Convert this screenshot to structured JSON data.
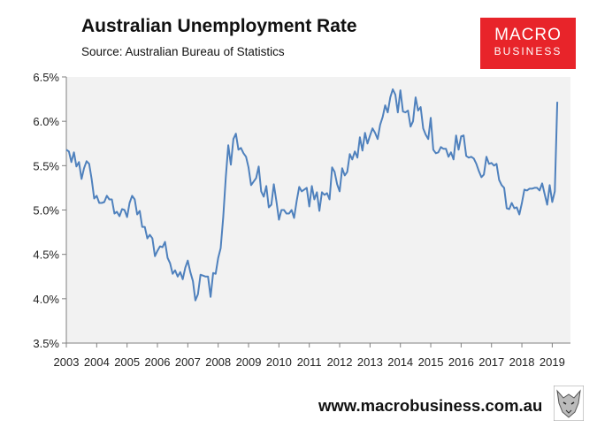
{
  "header": {
    "title": "Australian Unemployment Rate",
    "subtitle": "Source: Australian Bureau of Statistics"
  },
  "logo": {
    "line1": "MACRO",
    "line2": "BUSINESS",
    "color": "#e8242a"
  },
  "footer": {
    "url": "www.macrobusiness.com.au",
    "mascot_icon": "wolf-icon"
  },
  "chart_data": {
    "type": "line",
    "title": "Australian Unemployment Rate",
    "xlabel": "",
    "ylabel": "",
    "x_ticks": [
      "2003",
      "2004",
      "2005",
      "2006",
      "2007",
      "2008",
      "2009",
      "2010",
      "2011",
      "2012",
      "2013",
      "2014",
      "2015",
      "2016",
      "2017",
      "2018",
      "2019"
    ],
    "y_ticks": [
      "3.5%",
      "4.0%",
      "4.5%",
      "5.0%",
      "5.5%",
      "6.0%",
      "6.5%"
    ],
    "ylim": [
      3.5,
      6.5
    ],
    "xlim": [
      2003.0,
      2019.6
    ],
    "grid": false,
    "plot_background": "#f2f2f2",
    "line_color": "#4f81bd",
    "series": [
      {
        "x_start": 2003.0,
        "step_months": 1,
        "values": [
          5.68,
          5.66,
          5.54,
          5.65,
          5.49,
          5.54,
          5.35,
          5.47,
          5.55,
          5.52,
          5.35,
          5.13,
          5.16,
          5.08,
          5.08,
          5.09,
          5.16,
          5.12,
          5.12,
          4.96,
          4.98,
          4.93,
          5.01,
          5.0,
          4.92,
          5.08,
          5.16,
          5.12,
          4.95,
          4.99,
          4.81,
          4.81,
          4.68,
          4.72,
          4.68,
          4.48,
          4.54,
          4.59,
          4.58,
          4.64,
          4.46,
          4.4,
          4.28,
          4.32,
          4.25,
          4.3,
          4.22,
          4.35,
          4.43,
          4.3,
          4.2,
          3.98,
          4.05,
          4.27,
          4.26,
          4.25,
          4.25,
          4.02,
          4.29,
          4.28,
          4.46,
          4.57,
          4.92,
          5.37,
          5.73,
          5.51,
          5.8,
          5.86,
          5.68,
          5.7,
          5.64,
          5.6,
          5.48,
          5.28,
          5.32,
          5.36,
          5.49,
          5.21,
          5.15,
          5.27,
          5.03,
          5.06,
          5.29,
          5.1,
          4.89,
          5.0,
          5.0,
          4.96,
          4.96,
          5.0,
          4.91,
          5.1,
          5.26,
          5.21,
          5.23,
          5.25,
          5.04,
          5.27,
          5.12,
          5.2,
          4.99,
          5.2,
          5.17,
          5.19,
          5.12,
          5.48,
          5.43,
          5.29,
          5.21,
          5.47,
          5.39,
          5.43,
          5.63,
          5.57,
          5.66,
          5.59,
          5.82,
          5.67,
          5.87,
          5.75,
          5.84,
          5.92,
          5.87,
          5.8,
          5.96,
          6.05,
          6.18,
          6.1,
          6.27,
          6.36,
          6.3,
          6.1,
          6.35,
          6.11,
          6.1,
          6.12,
          5.94,
          6.0,
          6.27,
          6.12,
          6.16,
          5.92,
          5.85,
          5.8,
          6.04,
          5.68,
          5.64,
          5.65,
          5.71,
          5.69,
          5.69,
          5.6,
          5.65,
          5.57,
          5.84,
          5.68,
          5.83,
          5.84,
          5.61,
          5.59,
          5.6,
          5.58,
          5.52,
          5.44,
          5.37,
          5.4,
          5.6,
          5.52,
          5.53,
          5.5,
          5.52,
          5.34,
          5.28,
          5.25,
          5.02,
          5.01,
          5.08,
          5.02,
          5.03,
          4.95,
          5.08,
          5.23,
          5.22,
          5.24,
          5.24,
          5.25,
          5.25,
          5.22,
          5.3,
          5.18,
          5.06,
          5.28,
          5.09,
          5.21,
          6.22
        ]
      }
    ]
  }
}
